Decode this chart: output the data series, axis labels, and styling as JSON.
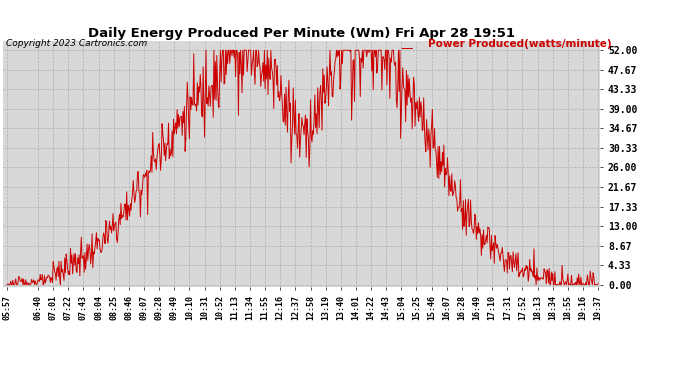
{
  "title": "Daily Energy Produced Per Minute (Wm) Fri Apr 28 19:51",
  "copyright": "Copyright 2023 Cartronics.com",
  "legend_label": "Power Produced(watts/minute)",
  "line_color": "#cc0000",
  "background_color": "#ffffff",
  "plot_bg_color": "#d8d8d8",
  "grid_color": "#aaaaaa",
  "yticks": [
    0.0,
    4.33,
    8.67,
    13.0,
    17.33,
    21.67,
    26.0,
    30.33,
    34.67,
    39.0,
    43.33,
    47.67,
    52.0
  ],
  "ylim": [
    -0.5,
    54
  ],
  "xtick_labels": [
    "05:57",
    "06:40",
    "07:01",
    "07:22",
    "07:43",
    "08:04",
    "08:25",
    "08:46",
    "09:07",
    "09:28",
    "09:49",
    "10:10",
    "10:31",
    "10:52",
    "11:13",
    "11:34",
    "11:55",
    "12:16",
    "12:37",
    "12:58",
    "13:19",
    "13:40",
    "14:01",
    "14:22",
    "14:43",
    "15:04",
    "15:25",
    "15:46",
    "16:07",
    "16:28",
    "16:49",
    "17:10",
    "17:31",
    "17:52",
    "18:13",
    "18:34",
    "18:55",
    "19:16",
    "19:37"
  ]
}
